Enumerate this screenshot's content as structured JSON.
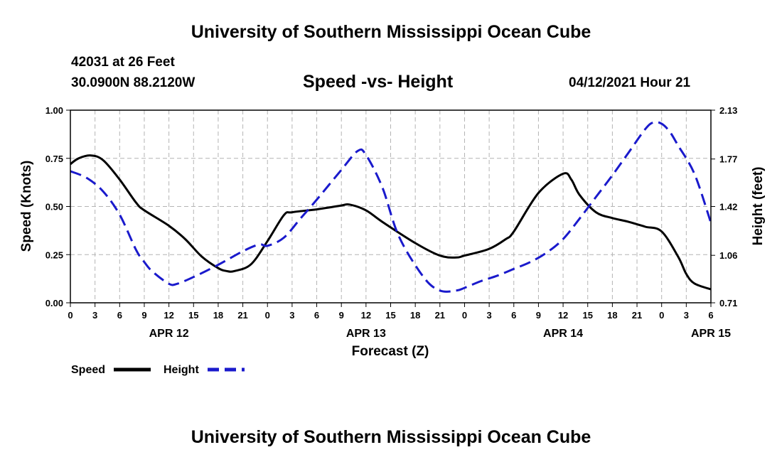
{
  "page": {
    "title_top": "University of Southern Mississippi Ocean Cube",
    "title_bottom": "University of Southern Mississippi Ocean Cube",
    "station": "42031 at 26 Feet",
    "coords": "30.0900N  88.2120W",
    "chart_title": "Speed -vs- Height",
    "datetime": "04/12/2021 Hour 21"
  },
  "colors": {
    "speed": "#000000",
    "height": "#1a1acc",
    "grid": "#b4b4b4"
  },
  "chart_data": {
    "type": "line",
    "title": "Speed -vs- Height",
    "xlabel": "Forecast (Z)",
    "ylabel_left": "Speed (Knots)",
    "ylabel_right": "Height (feet)",
    "xlim": [
      0,
      78
    ],
    "ylim_left": [
      0,
      1
    ],
    "ylim_right": [
      0.71,
      2.13
    ],
    "grid": true,
    "legend_position": "bottom-left",
    "x_tick_values": [
      0,
      3,
      6,
      9,
      12,
      15,
      18,
      21,
      24,
      27,
      30,
      33,
      36,
      39,
      42,
      45,
      48,
      51,
      54,
      57,
      60,
      63,
      66,
      69,
      72,
      75,
      78
    ],
    "x_tick_labels": [
      "0",
      "3",
      "6",
      "9",
      "12",
      "15",
      "18",
      "21",
      "0",
      "3",
      "6",
      "9",
      "12",
      "15",
      "18",
      "21",
      "0",
      "3",
      "6",
      "9",
      "12",
      "15",
      "18",
      "21",
      "0",
      "3",
      "6"
    ],
    "date_labels": [
      {
        "label": "APR 12",
        "x": 12
      },
      {
        "label": "APR 13",
        "x": 36
      },
      {
        "label": "APR 14",
        "x": 60
      },
      {
        "label": "APR 15",
        "x": 78
      }
    ],
    "y_left_ticks": [
      "0.00",
      "0.25",
      "0.50",
      "0.75",
      "1.00"
    ],
    "y_left_tick_values": [
      0,
      0.25,
      0.5,
      0.75,
      1.0
    ],
    "y_right_ticks": [
      "0.71",
      "1.06",
      "1.42",
      "1.77",
      "2.13"
    ],
    "y_right_tick_values": [
      0.71,
      1.06,
      1.42,
      1.77,
      2.13
    ],
    "series": [
      {
        "name": "Speed",
        "axis": "left",
        "style": "solid",
        "x": [
          0,
          1,
          2.5,
          4,
          6,
          8,
          9,
          12,
          14,
          16,
          18,
          19,
          20,
          22,
          24,
          26,
          27,
          30,
          33,
          34,
          36,
          38,
          42,
          45,
          47,
          48,
          51,
          53,
          54,
          57,
          60,
          61,
          62,
          64,
          66,
          68,
          70,
          72,
          74,
          75,
          76,
          78
        ],
        "values": [
          0.72,
          0.75,
          0.765,
          0.74,
          0.64,
          0.52,
          0.48,
          0.4,
          0.33,
          0.24,
          0.18,
          0.165,
          0.165,
          0.2,
          0.32,
          0.455,
          0.47,
          0.485,
          0.505,
          0.51,
          0.48,
          0.42,
          0.31,
          0.245,
          0.235,
          0.245,
          0.28,
          0.33,
          0.37,
          0.57,
          0.67,
          0.64,
          0.56,
          0.47,
          0.44,
          0.42,
          0.395,
          0.37,
          0.24,
          0.15,
          0.1,
          0.07
        ]
      },
      {
        "name": "Height",
        "axis": "right",
        "style": "dashed",
        "x": [
          0,
          2,
          4,
          6,
          8,
          9,
          10,
          12,
          13,
          15,
          18,
          21,
          23,
          24,
          26,
          28,
          30,
          33,
          35,
          36,
          38,
          40,
          43,
          45,
          47,
          48,
          50,
          52,
          54,
          56,
          58,
          60,
          62,
          64,
          66,
          68,
          70,
          71,
          72,
          73,
          74,
          76,
          78
        ],
        "values": [
          1.68,
          1.63,
          1.53,
          1.36,
          1.1,
          1.01,
          0.94,
          0.85,
          0.85,
          0.9,
          0.99,
          1.09,
          1.14,
          1.13,
          1.19,
          1.33,
          1.47,
          1.69,
          1.83,
          1.8,
          1.56,
          1.2,
          0.9,
          0.8,
          0.8,
          0.82,
          0.87,
          0.91,
          0.96,
          1.01,
          1.08,
          1.18,
          1.33,
          1.49,
          1.65,
          1.82,
          1.99,
          2.04,
          2.03,
          1.97,
          1.87,
          1.66,
          1.3
        ]
      }
    ]
  }
}
